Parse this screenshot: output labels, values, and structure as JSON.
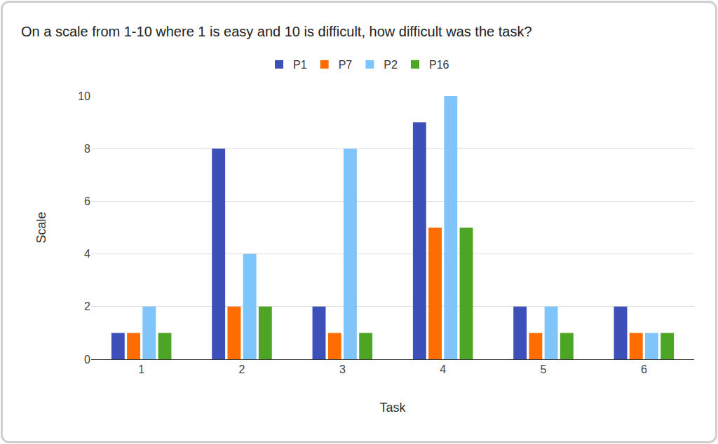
{
  "chart_data": {
    "type": "bar",
    "title": "On a scale from 1-10 where 1 is easy and 10 is difficult, how difficult was the task?",
    "x_label": "Task",
    "y_label": "Scale",
    "categories": [
      "1",
      "2",
      "3",
      "4",
      "5",
      "6"
    ],
    "series": [
      {
        "name": "P1",
        "color": "#3d50b9",
        "values": [
          1,
          8,
          2,
          9,
          2,
          2
        ]
      },
      {
        "name": "P7",
        "color": "#ff6d01",
        "values": [
          1,
          2,
          1,
          5,
          1,
          1
        ]
      },
      {
        "name": "P2",
        "color": "#7fc4fb",
        "values": [
          2,
          4,
          8,
          10,
          2,
          1
        ]
      },
      {
        "name": "P16",
        "color": "#4da526",
        "values": [
          1,
          2,
          1,
          5,
          1,
          1
        ]
      }
    ],
    "ylim": [
      0,
      10
    ],
    "yticks": [
      0,
      2,
      4,
      6,
      8,
      10
    ],
    "grid": true,
    "legend": "top"
  }
}
